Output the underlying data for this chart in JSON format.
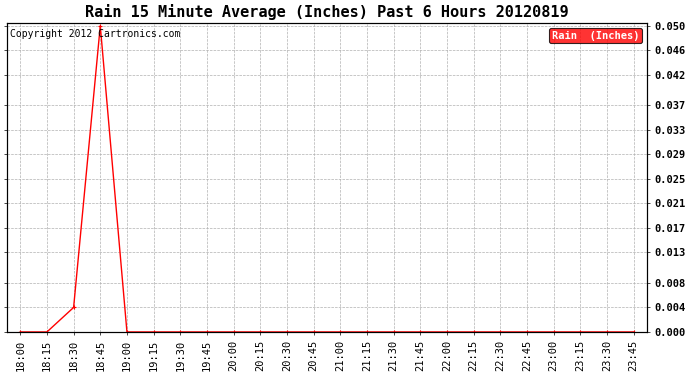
{
  "title": "Rain 15 Minute Average (Inches) Past 6 Hours 20120819",
  "copyright": "Copyright 2012 Cartronics.com",
  "legend_label": "Rain  (Inches)",
  "line_color": "#ff0000",
  "background_color": "#ffffff",
  "grid_color": "#b0b0b0",
  "x_labels": [
    "18:00",
    "18:15",
    "18:30",
    "18:45",
    "19:00",
    "19:15",
    "19:30",
    "19:45",
    "20:00",
    "20:15",
    "20:30",
    "20:45",
    "21:00",
    "21:15",
    "21:30",
    "21:45",
    "22:00",
    "22:15",
    "22:30",
    "22:45",
    "23:00",
    "23:15",
    "23:30",
    "23:45"
  ],
  "y_ticks": [
    0.0,
    0.004,
    0.008,
    0.013,
    0.017,
    0.021,
    0.025,
    0.029,
    0.033,
    0.037,
    0.042,
    0.046,
    0.05
  ],
  "data_values": [
    0.0,
    0.0,
    0.004,
    0.05,
    0.0,
    0.0,
    0.0,
    0.0,
    0.0,
    0.0,
    0.0,
    0.0,
    0.0,
    0.0,
    0.0,
    0.0,
    0.0,
    0.0,
    0.0,
    0.0,
    0.0,
    0.0,
    0.0,
    0.0
  ],
  "ylim": [
    0.0,
    0.0505
  ],
  "title_fontsize": 11,
  "tick_fontsize": 7.5,
  "legend_fontsize": 7.5,
  "copyright_fontsize": 7
}
